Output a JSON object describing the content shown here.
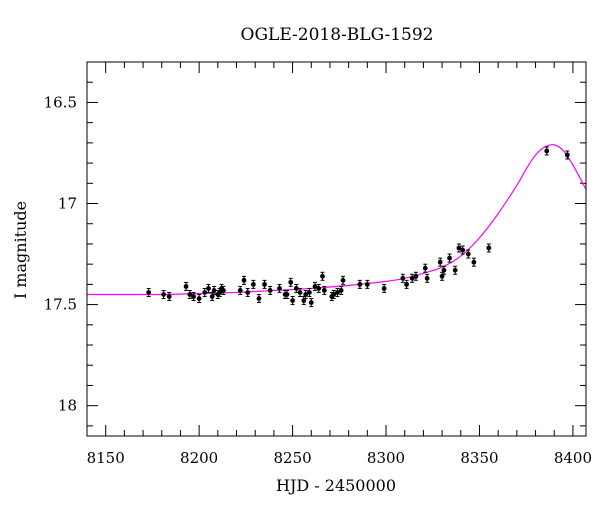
{
  "chart_data": {
    "type": "scatter",
    "title": "OGLE-2018-BLG-1592",
    "xlabel": "HJD - 2450000",
    "ylabel": "I magnitude",
    "xlim": [
      8140,
      8407
    ],
    "ylim": [
      18.15,
      16.3
    ],
    "y_inverted": true,
    "grid": false,
    "x_ticks": [
      "8150",
      "8200",
      "8250",
      "8300",
      "8350",
      "8400"
    ],
    "y_ticks": [
      "16.5",
      "17",
      "17.5",
      "18"
    ],
    "colors": {
      "points": "#000000",
      "model": "#ff00ff",
      "frame": "#000000"
    },
    "series": [
      {
        "kind": "points",
        "x": [
          8173,
          8181,
          8184,
          8193,
          8195,
          8197,
          8200,
          8203,
          8205,
          8207,
          8208,
          8210,
          8211,
          8212,
          8213,
          8222,
          8224,
          8226,
          8229,
          8232,
          8235,
          8238,
          8243,
          8246,
          8247,
          8249,
          8250,
          8252,
          8254,
          8256,
          8257,
          8259,
          8260,
          8262,
          8264,
          8266,
          8267,
          8271,
          8272,
          8274,
          8276,
          8277,
          8286,
          8290,
          8299,
          8309,
          8311,
          8314,
          8316,
          8321,
          8322,
          8329,
          8330,
          8331,
          8334,
          8337,
          8339,
          8341,
          8344,
          8347,
          8355,
          8386,
          8397
        ],
        "y": [
          17.44,
          17.45,
          17.46,
          17.41,
          17.45,
          17.46,
          17.47,
          17.44,
          17.42,
          17.46,
          17.43,
          17.45,
          17.44,
          17.42,
          17.43,
          17.43,
          17.38,
          17.44,
          17.4,
          17.47,
          17.4,
          17.43,
          17.42,
          17.45,
          17.45,
          17.39,
          17.48,
          17.42,
          17.44,
          17.48,
          17.45,
          17.44,
          17.49,
          17.41,
          17.42,
          17.36,
          17.43,
          17.46,
          17.45,
          17.44,
          17.43,
          17.38,
          17.4,
          17.4,
          17.42,
          17.37,
          17.4,
          17.37,
          17.36,
          17.32,
          17.37,
          17.29,
          17.36,
          17.33,
          17.27,
          17.33,
          17.22,
          17.23,
          17.25,
          17.29,
          17.22,
          16.74,
          16.76
        ]
      },
      {
        "kind": "model",
        "x": [
          8140,
          8160,
          8180,
          8200,
          8220,
          8240,
          8260,
          8280,
          8300,
          8310,
          8320,
          8330,
          8340,
          8350,
          8360,
          8370,
          8375,
          8380,
          8385,
          8390,
          8395,
          8400,
          8407
        ],
        "y": [
          17.45,
          17.45,
          17.45,
          17.445,
          17.44,
          17.43,
          17.42,
          17.405,
          17.385,
          17.37,
          17.345,
          17.315,
          17.26,
          17.17,
          17.05,
          16.91,
          16.83,
          16.76,
          16.72,
          16.71,
          16.74,
          16.81,
          16.93
        ]
      }
    ]
  }
}
